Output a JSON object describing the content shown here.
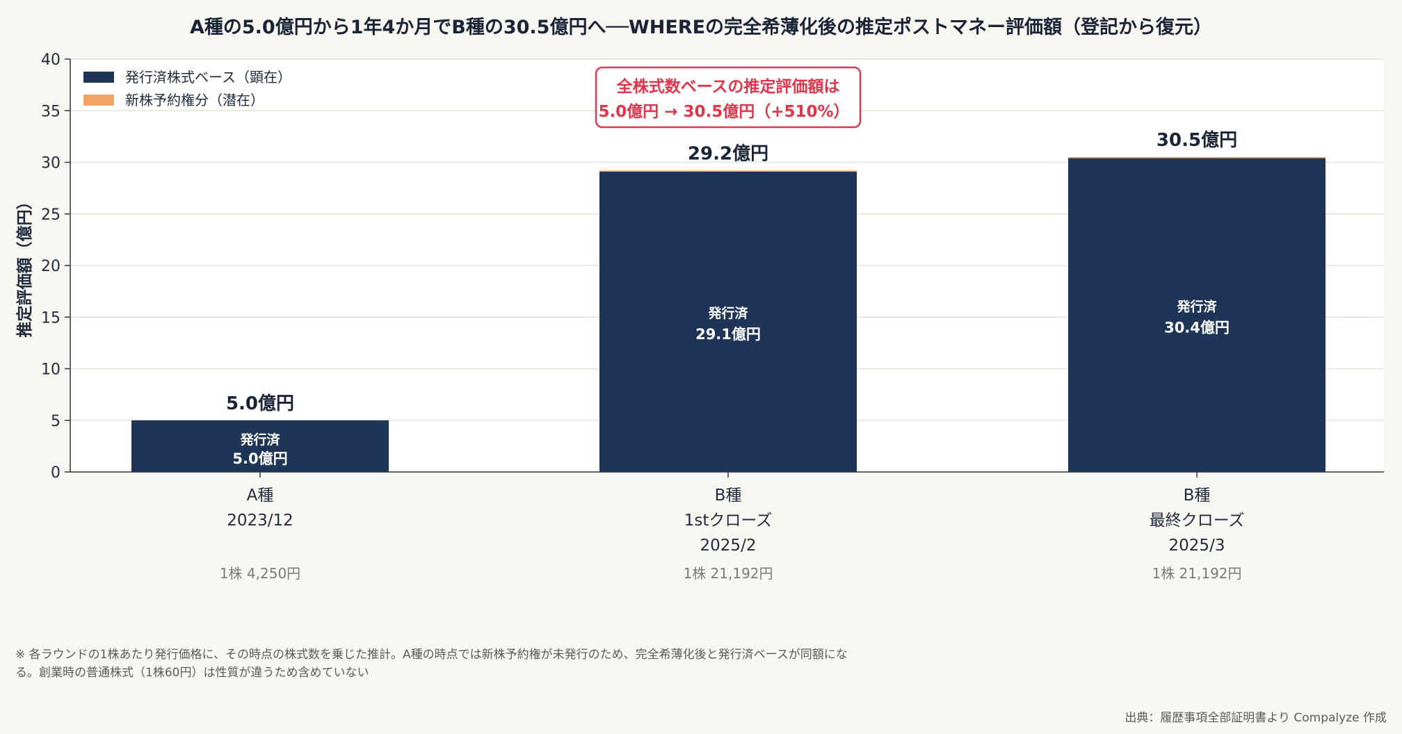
{
  "chart_data": {
    "type": "bar",
    "stacked": true,
    "title": "A種の5.0億円から1年4か月でB種の30.5億円へ──WHEREの完全希薄化後の推定ポストマネー評価額（登記から復元）",
    "ylabel": "推定評価額（億円）",
    "xlabel": "",
    "ylim": [
      0,
      40
    ],
    "yticks": [
      0,
      5,
      10,
      15,
      20,
      25,
      30,
      35,
      40
    ],
    "grid": true,
    "legend_position": "top-left",
    "categories": [
      {
        "lines": [
          "A種",
          "2023/12"
        ],
        "price": "1株 4,250円"
      },
      {
        "lines": [
          "B種",
          "1stクローズ",
          "2025/2"
        ],
        "price": "1株 21,192円"
      },
      {
        "lines": [
          "B種",
          "最終クローズ",
          "2025/3"
        ],
        "price": "1株 21,192円"
      }
    ],
    "series": [
      {
        "name": "発行済株式ベース（顕在）",
        "color": "#1e3557",
        "values": [
          5.0,
          29.1,
          30.4
        ]
      },
      {
        "name": "新株予約権分（潜在）",
        "color": "#f0a465",
        "values": [
          0.0,
          0.1,
          0.1
        ]
      }
    ],
    "totals": [
      5.0,
      29.2,
      30.5
    ],
    "total_labels": [
      "5.0億円",
      "29.2億円",
      "30.5億円"
    ],
    "inbar_labels": [
      {
        "line1": "発行済",
        "line2": "5.0億円"
      },
      {
        "line1": "発行済",
        "line2": "29.1億円"
      },
      {
        "line1": "発行済",
        "line2": "30.4億円"
      }
    ],
    "callout": {
      "line1": "全株式数ベースの推定評価額は",
      "line2": "5.0億円 → 30.5億円（+510%）",
      "border_color": "#e0354b"
    },
    "footnote": [
      "※ 各ラウンドの1株あたり発行価格に、その時点の株式数を乗じた推計。A種の時点では新株予約権が未発行のため、完全希薄化後と発行済ベースが同額にな",
      "る。創業時の普通株式（1株60円）は性質が違うため含めていない"
    ],
    "source": "出典：履歴事項全部証明書より Compalyze 作成"
  }
}
